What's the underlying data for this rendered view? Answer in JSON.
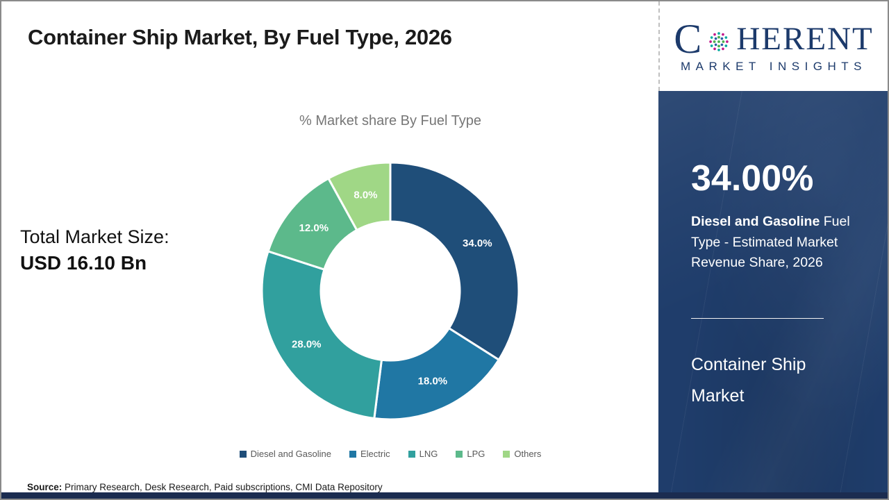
{
  "header": {
    "title": "Container Ship Market, By Fuel Type, 2026"
  },
  "logo": {
    "c": "C",
    "rest": "HERENT",
    "subtitle": "MARKET INSIGHTS",
    "globe_icon": "dotted-globe",
    "brand_color": "#1c3a6b",
    "dot_colors": [
      "#c2188c",
      "#00a99d",
      "#4caf50",
      "#2b5ea7"
    ]
  },
  "left_panel": {
    "total_label": "Total Market Size:",
    "total_value": "USD 16.10 Bn"
  },
  "chart_data": {
    "type": "pie",
    "donut": true,
    "title": "% Market share By Fuel Type",
    "categories": [
      "Diesel and Gasoline",
      "Electric",
      "LNG",
      "LPG",
      "Others"
    ],
    "values": [
      34.0,
      18.0,
      28.0,
      12.0,
      8.0
    ],
    "labels": [
      "34.0%",
      "18.0%",
      "28.0%",
      "12.0%",
      "8.0%"
    ],
    "colors": [
      "#1f4e79",
      "#2077a4",
      "#31a09e",
      "#5cb98b",
      "#a0d786"
    ],
    "start_angle_deg": 0,
    "direction": "clockwise",
    "legend_position": "bottom",
    "outer_radius": 185,
    "inner_radius": 100
  },
  "sidebar": {
    "stat_value": "34.00%",
    "stat_desc_bold": "Diesel and Gasoline",
    "stat_desc_rest": " Fuel Type - Estimated Market Revenue Share, 2026",
    "market_name": "Container Ship Market",
    "background_color": "#1f3d6b"
  },
  "footer": {
    "source_label": "Source:",
    "source_text": " Primary Research, Desk Research, Paid subscriptions, CMI Data Repository"
  }
}
